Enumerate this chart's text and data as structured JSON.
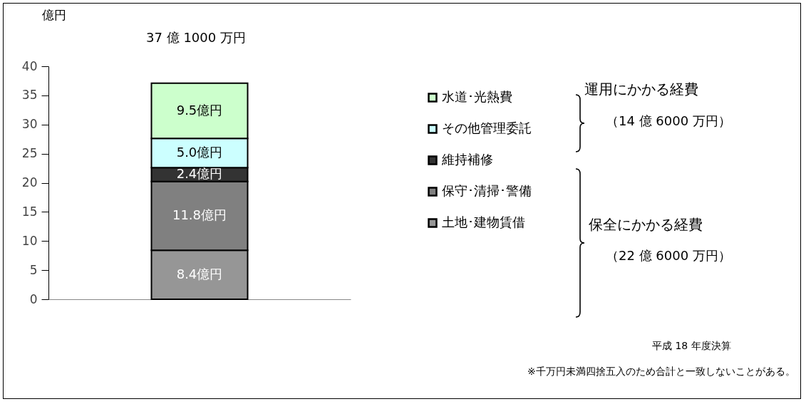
{
  "chart_data": {
    "type": "bar",
    "stacked": true,
    "title": "37 億 1000 万円",
    "ylabel": "億円",
    "categories": [
      null
    ],
    "series": [
      {
        "name": "土地･建物賃借",
        "color": "#969696",
        "values": [
          8.4
        ],
        "value_labels": [
          "8.4億円"
        ]
      },
      {
        "name": "保守･清掃･警備",
        "color": "#808080",
        "values": [
          11.8
        ],
        "value_labels": [
          "11.8億円"
        ]
      },
      {
        "name": "維持補修",
        "color": "#333333",
        "values": [
          2.4
        ],
        "value_labels": [
          "2.4億円"
        ]
      },
      {
        "name": "その他管理委託",
        "color": "#ccffff",
        "values": [
          5.0
        ],
        "value_labels": [
          "5.0億円"
        ]
      },
      {
        "name": "水道･光熱費",
        "color": "#ccffcc",
        "values": [
          9.5
        ],
        "value_labels": [
          "9.5億円"
        ]
      }
    ],
    "ylim": [
      0,
      40
    ],
    "yticks": [
      0,
      5,
      10,
      15,
      20,
      25,
      30,
      35,
      40
    ],
    "tick_labels": "y",
    "grid": false,
    "legend": "right",
    "annotations": [
      "運用にかかる経費",
      "（14 億 6000 万円）",
      "保全にかかる経費",
      "（22 億 6000 万円）",
      "平成 18 年度決算",
      "※千万円未満四捨五入のため合計と一致しないことがある。"
    ]
  }
}
